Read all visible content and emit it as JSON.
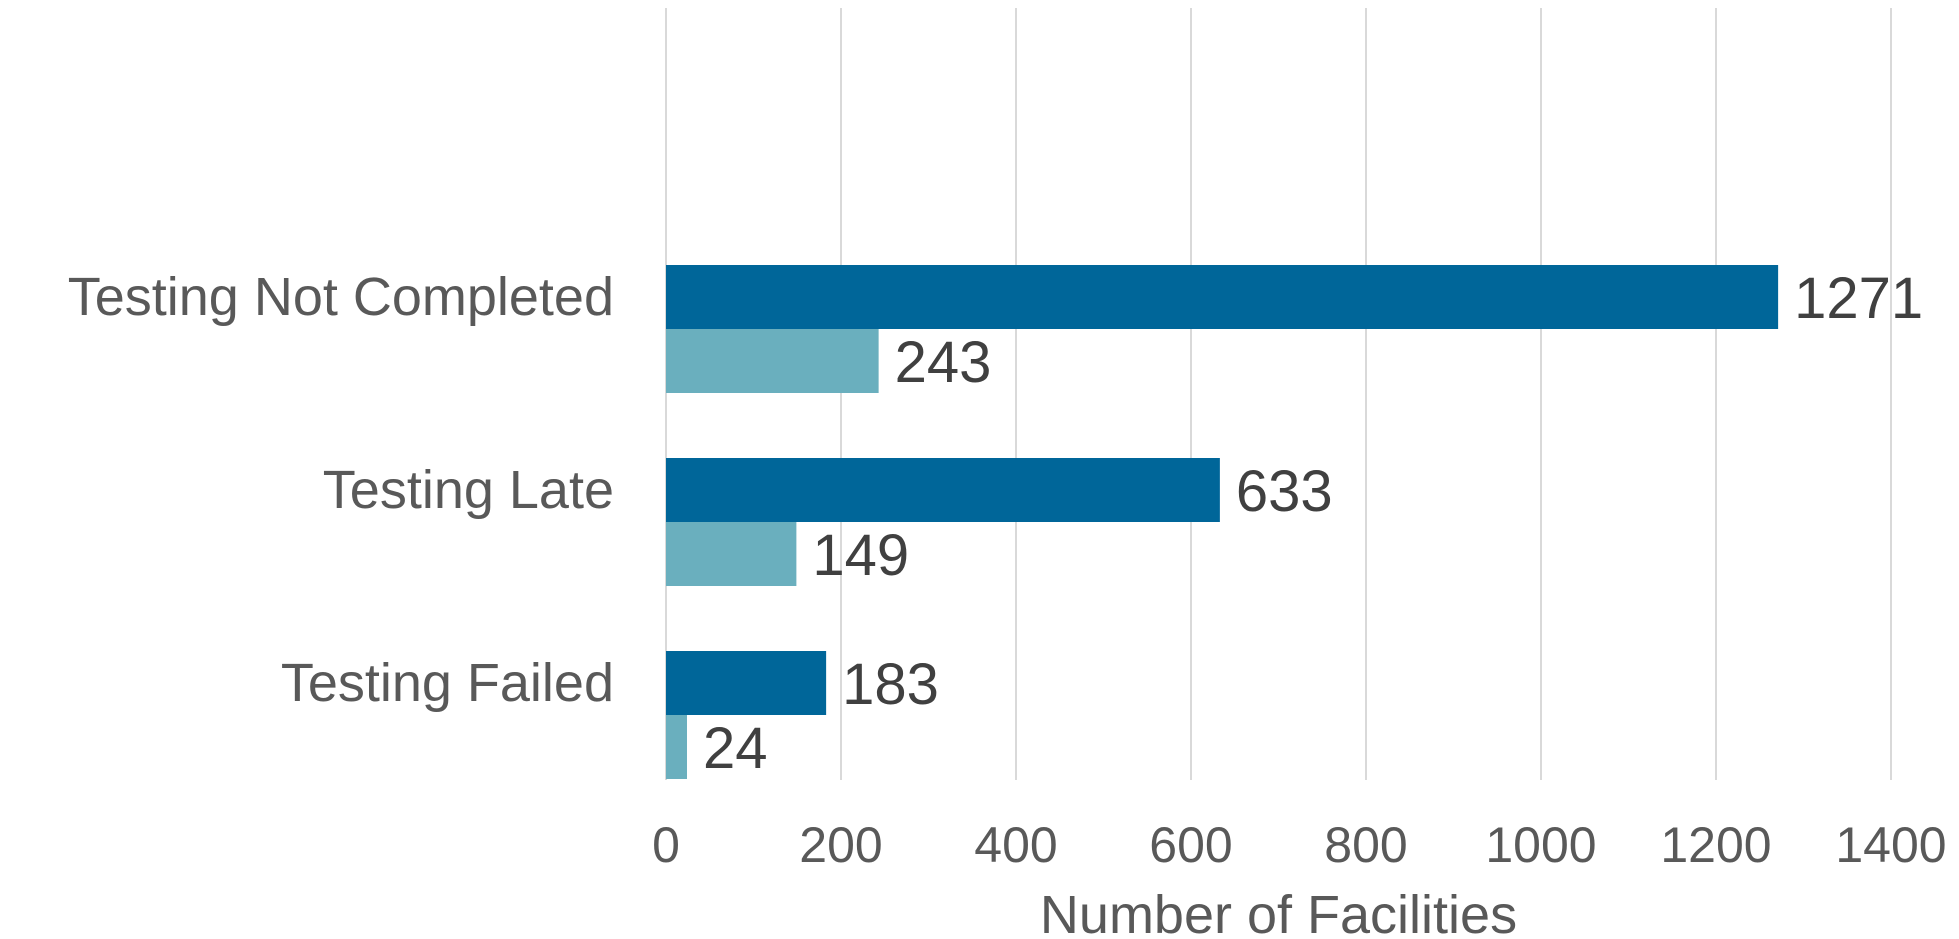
{
  "chart_data": {
    "type": "bar",
    "orientation": "horizontal",
    "title": "",
    "xlabel": "Number of Facilities",
    "ylabel": "",
    "xlim": [
      0,
      1400
    ],
    "xticks": [
      0,
      200,
      400,
      600,
      800,
      1000,
      1200,
      1400
    ],
    "grid": true,
    "legend": "none",
    "categories": [
      "Testing Not Completed",
      "Testing Late",
      "Testing Failed"
    ],
    "series": [
      {
        "values": [
          1271,
          633,
          183
        ],
        "color": "#006699"
      },
      {
        "values": [
          243,
          149,
          24
        ],
        "color": "#6aafbe"
      }
    ]
  }
}
